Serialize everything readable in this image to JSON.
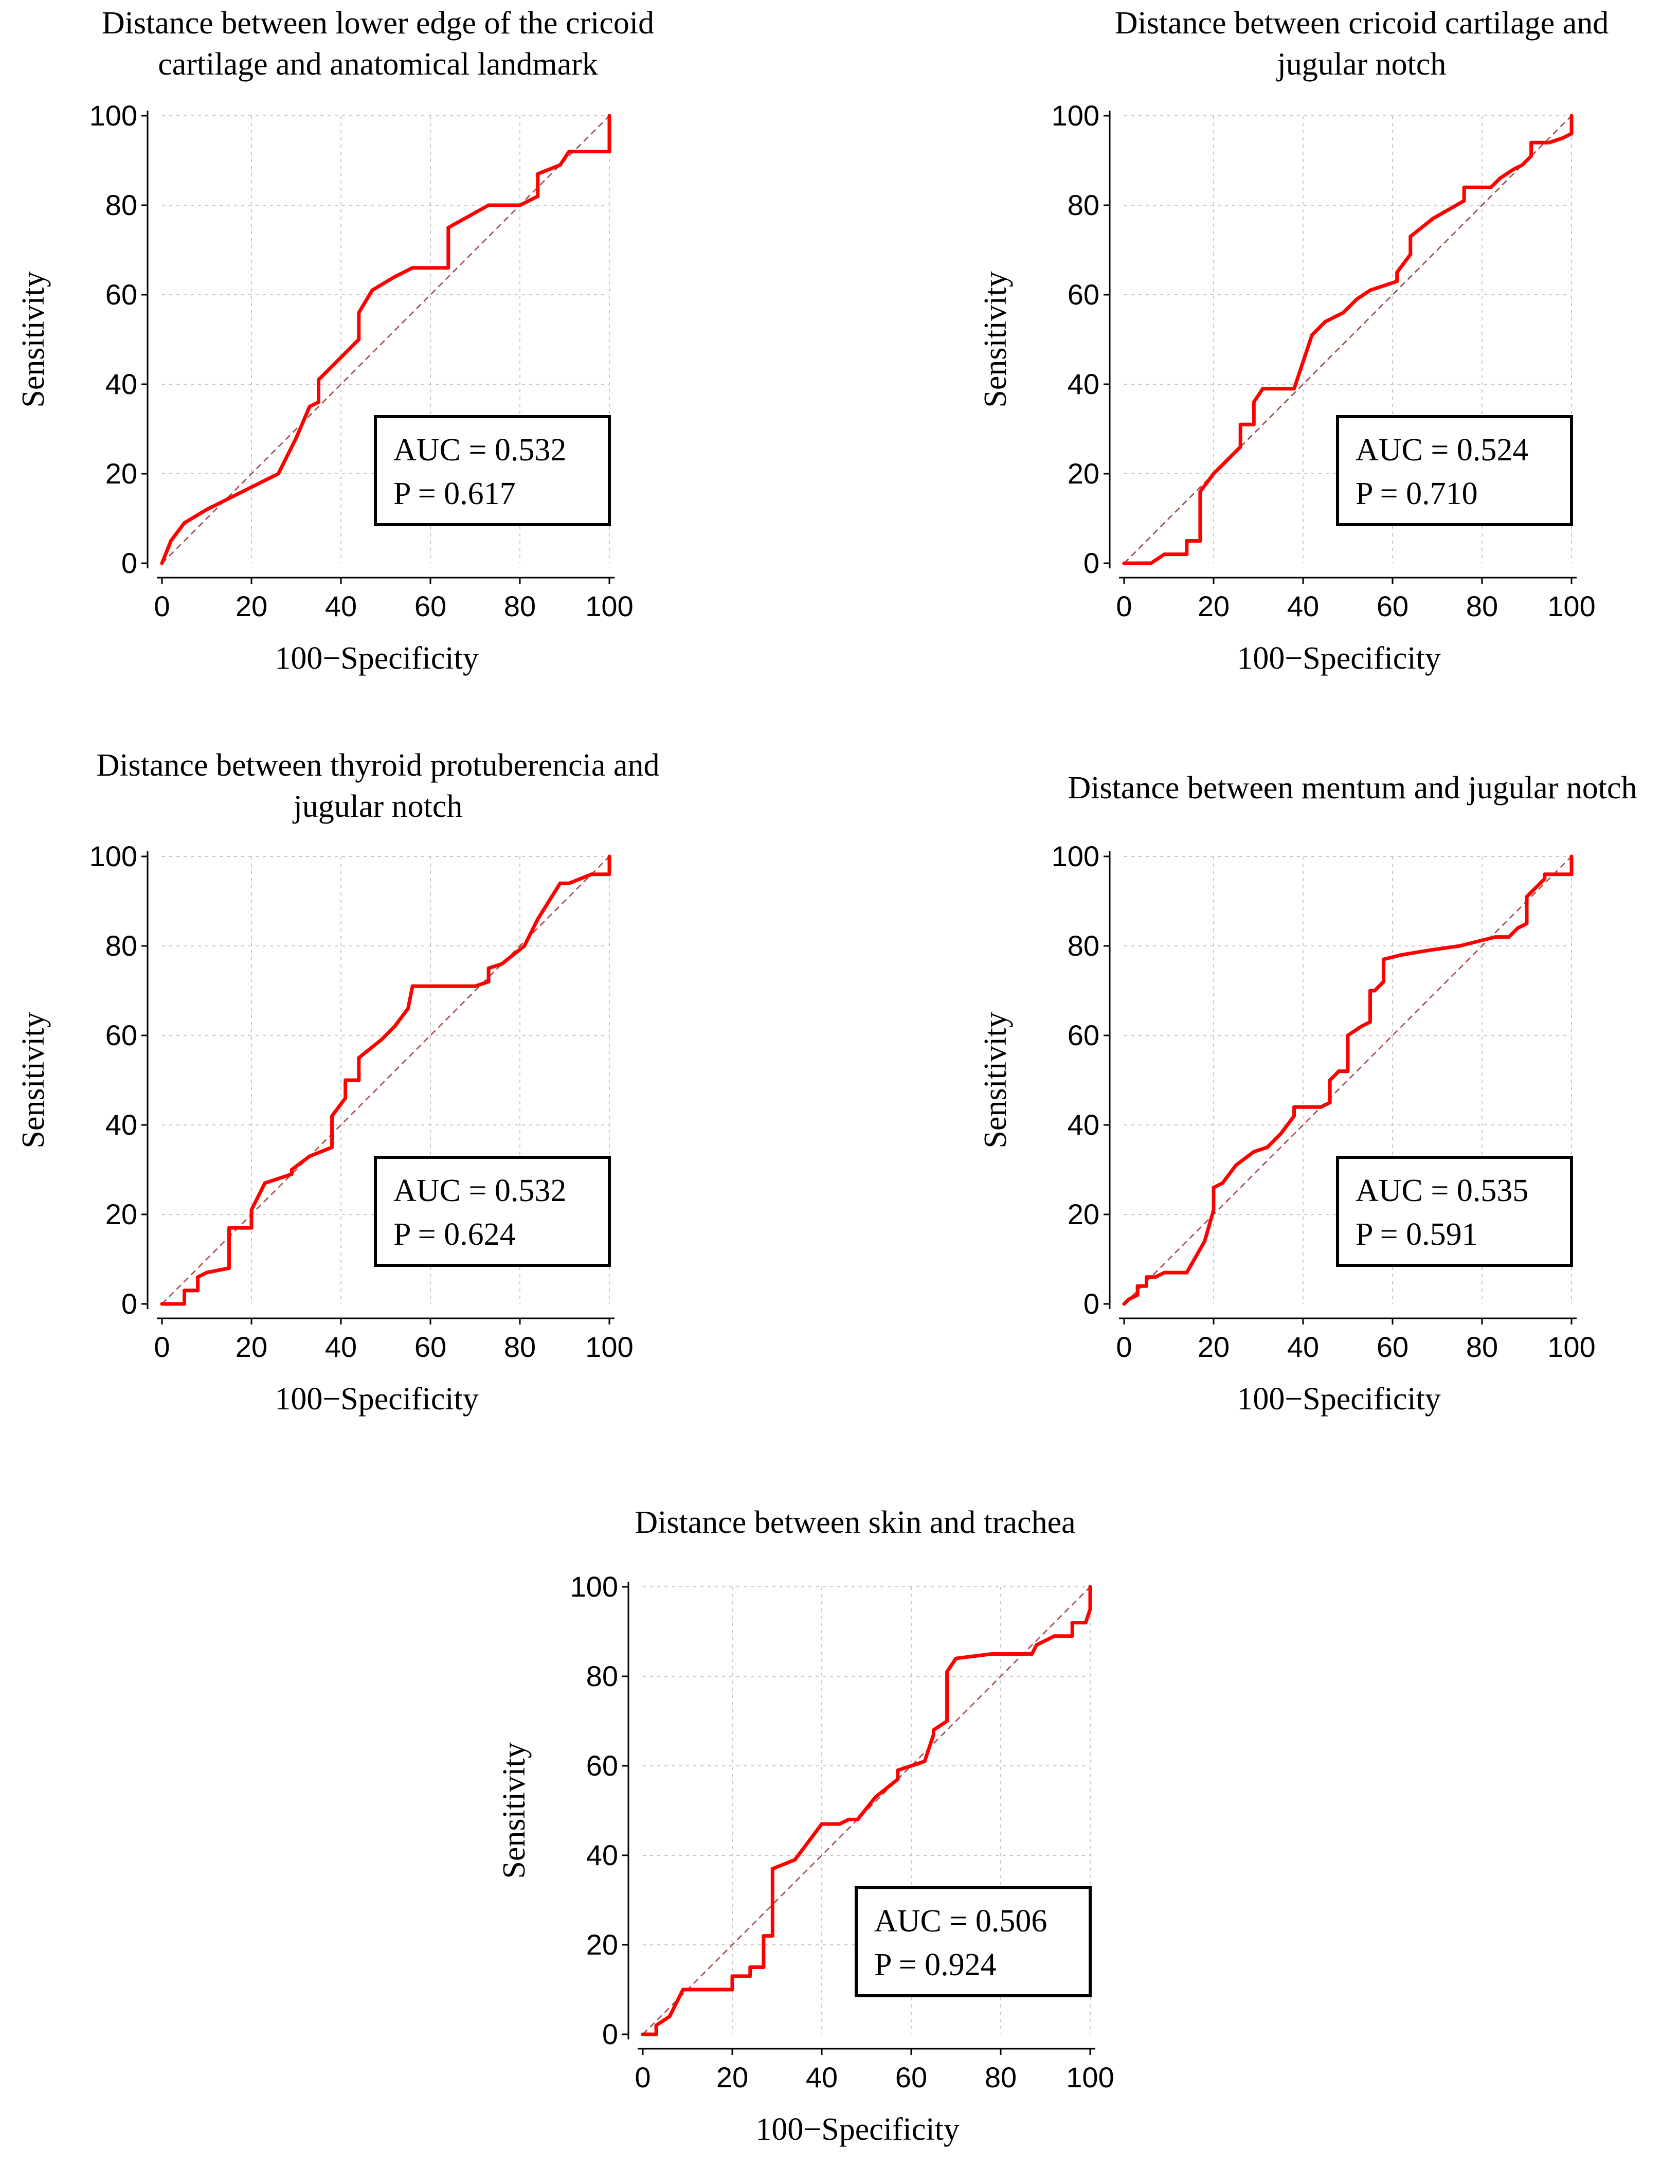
{
  "figure": {
    "colors": {
      "curve": "#ff0000",
      "diagonal": "#a04040",
      "grid": "#c8c8c8",
      "axis": "#000000"
    }
  },
  "chart_data": [
    {
      "type": "line",
      "title": [
        "Distance between lower edge of the cricoid",
        "cartilage and anatomical landmark"
      ],
      "xlabel": "100−Specificity",
      "ylabel": "Sensitivity",
      "xlim": [
        0,
        100
      ],
      "ylim": [
        0,
        100
      ],
      "xticks": [
        0,
        20,
        40,
        60,
        80,
        100
      ],
      "yticks": [
        0,
        20,
        40,
        60,
        80,
        100
      ],
      "grid": true,
      "auc_label": "AUC = 0.532",
      "p_label": "P = 0.617",
      "series": [
        {
          "name": "ROC curve",
          "x": [
            0,
            2,
            5,
            10,
            18,
            26,
            30,
            33,
            35,
            35,
            40,
            44,
            44,
            47,
            52,
            56,
            64,
            64,
            73,
            80,
            84,
            84,
            89,
            91,
            96,
            100,
            100
          ],
          "y": [
            0,
            5,
            9,
            12,
            16,
            20,
            28,
            35,
            36,
            41,
            46,
            50,
            56,
            61,
            64,
            66,
            66,
            75,
            80,
            80,
            82,
            87,
            89,
            92,
            92,
            92,
            100
          ]
        }
      ],
      "reference": {
        "name": "chance",
        "x": [
          0,
          100
        ],
        "y": [
          0,
          100
        ]
      }
    },
    {
      "type": "line",
      "title": [
        "Distance between cricoid cartilage and",
        "jugular notch"
      ],
      "xlabel": "100−Specificity",
      "ylabel": "Sensitivity",
      "xlim": [
        0,
        100
      ],
      "ylim": [
        0,
        100
      ],
      "xticks": [
        0,
        20,
        40,
        60,
        80,
        100
      ],
      "yticks": [
        0,
        20,
        40,
        60,
        80,
        100
      ],
      "grid": true,
      "auc_label": "AUC = 0.524",
      "p_label": "P = 0.710",
      "series": [
        {
          "name": "ROC curve",
          "x": [
            0,
            3,
            6,
            9,
            14,
            14,
            17,
            17,
            20,
            23,
            26,
            26,
            29,
            29,
            31,
            34,
            38,
            40,
            42,
            45,
            49,
            52,
            55,
            61,
            61,
            64,
            64,
            69,
            76,
            76,
            82,
            84,
            84,
            87,
            89,
            91,
            91,
            95,
            98,
            100,
            100
          ],
          "y": [
            0,
            0,
            0,
            2,
            2,
            5,
            5,
            16,
            20,
            23,
            26,
            31,
            31,
            36,
            39,
            39,
            39,
            45,
            51,
            54,
            56,
            59,
            61,
            63,
            65,
            69,
            73,
            77,
            81,
            84,
            84,
            86,
            86,
            88,
            89,
            91,
            94,
            94,
            95,
            96,
            100
          ]
        }
      ],
      "reference": {
        "name": "chance",
        "x": [
          0,
          100
        ],
        "y": [
          0,
          100
        ]
      }
    },
    {
      "type": "line",
      "title": [
        "Distance between thyroid protuberencia and",
        "jugular notch"
      ],
      "xlabel": "100−Specificity",
      "ylabel": "Sensitivity",
      "xlim": [
        0,
        100
      ],
      "ylim": [
        0,
        100
      ],
      "xticks": [
        0,
        20,
        40,
        60,
        80,
        100
      ],
      "yticks": [
        0,
        20,
        40,
        60,
        80,
        100
      ],
      "grid": true,
      "auc_label": "AUC = 0.532",
      "p_label": "P = 0.624",
      "series": [
        {
          "name": "ROC curve",
          "x": [
            0,
            2,
            5,
            5,
            8,
            8,
            10,
            15,
            15,
            17,
            20,
            20,
            23,
            26,
            29,
            29,
            33,
            38,
            38,
            41,
            41,
            44,
            44,
            49,
            52,
            55,
            56,
            62,
            70,
            73,
            73,
            76,
            81,
            84,
            89,
            91,
            96,
            99,
            100,
            100
          ],
          "y": [
            0,
            0,
            0,
            3,
            3,
            6,
            7,
            8,
            17,
            17,
            17,
            21,
            27,
            28,
            29,
            30,
            33,
            35,
            42,
            46,
            50,
            50,
            55,
            59,
            62,
            66,
            71,
            71,
            71,
            72,
            75,
            76,
            80,
            86,
            94,
            94,
            96,
            96,
            96,
            100
          ]
        }
      ],
      "reference": {
        "name": "chance",
        "x": [
          0,
          100
        ],
        "y": [
          0,
          100
        ]
      }
    },
    {
      "type": "line",
      "title": [
        "Distance between mentum and jugular notch"
      ],
      "xlabel": "100−Specificity",
      "ylabel": "Sensitivity",
      "xlim": [
        0,
        100
      ],
      "ylim": [
        0,
        100
      ],
      "xticks": [
        0,
        20,
        40,
        60,
        80,
        100
      ],
      "yticks": [
        0,
        20,
        40,
        60,
        80,
        100
      ],
      "grid": true,
      "auc_label": "AUC = 0.535",
      "p_label": "P = 0.591",
      "series": [
        {
          "name": "ROC curve",
          "x": [
            0,
            1,
            3,
            3,
            5,
            5,
            7,
            9,
            14,
            18,
            20,
            20,
            22,
            25,
            29,
            32,
            35,
            38,
            38,
            41,
            41,
            44,
            46,
            46,
            48,
            50,
            50,
            53,
            55,
            55,
            56,
            58,
            58,
            62,
            68,
            75,
            83,
            86,
            88,
            90,
            90,
            94,
            94,
            100,
            100
          ],
          "y": [
            0,
            1,
            2,
            4,
            4,
            6,
            6,
            7,
            7,
            14,
            21,
            26,
            27,
            31,
            34,
            35,
            38,
            42,
            44,
            44,
            44,
            44,
            45,
            50,
            52,
            52,
            60,
            62,
            63,
            70,
            70,
            72,
            77,
            78,
            79,
            80,
            82,
            82,
            84,
            85,
            91,
            95,
            96,
            96,
            100
          ]
        }
      ],
      "reference": {
        "name": "chance",
        "x": [
          0,
          100
        ],
        "y": [
          0,
          100
        ]
      }
    },
    {
      "type": "line",
      "title": [
        "Distance between skin and trachea"
      ],
      "xlabel": "100−Specificity",
      "ylabel": "Sensitivity",
      "xlim": [
        0,
        100
      ],
      "ylim": [
        0,
        100
      ],
      "xticks": [
        0,
        20,
        40,
        60,
        80,
        100
      ],
      "yticks": [
        0,
        20,
        40,
        60,
        80,
        100
      ],
      "grid": true,
      "auc_label": "AUC = 0.506",
      "p_label": "P = 0.924",
      "series": [
        {
          "name": "ROC curve",
          "x": [
            0,
            3,
            3,
            6,
            9,
            10,
            20,
            20,
            24,
            24,
            27,
            27,
            29,
            29,
            34,
            40,
            44,
            46,
            48,
            52,
            57,
            57,
            63,
            65,
            65,
            68,
            68,
            70,
            78,
            87,
            88,
            90,
            92,
            96,
            96,
            99,
            100,
            100
          ],
          "y": [
            0,
            0,
            2,
            4,
            10,
            10,
            10,
            13,
            13,
            15,
            15,
            22,
            22,
            37,
            39,
            47,
            47,
            48,
            48,
            53,
            57,
            59,
            61,
            67,
            68,
            70,
            81,
            84,
            85,
            85,
            87,
            88,
            89,
            89,
            92,
            92,
            95,
            100
          ]
        }
      ],
      "reference": {
        "name": "chance",
        "x": [
          0,
          100
        ],
        "y": [
          0,
          100
        ]
      }
    }
  ]
}
